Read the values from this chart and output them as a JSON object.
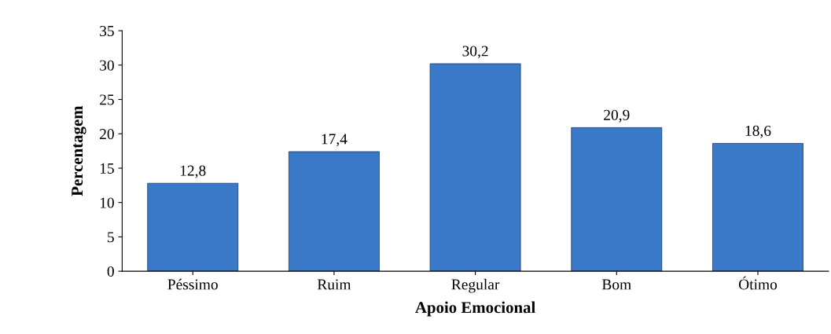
{
  "chart_data": {
    "type": "bar",
    "xlabel": "Apoio Emocional",
    "ylabel": "Percentagem",
    "categories": [
      "Péssimo",
      "Ruim",
      "Regular",
      "Bom",
      "Ótimo"
    ],
    "values": [
      12.8,
      17.4,
      30.2,
      20.9,
      18.6
    ],
    "value_labels": [
      "12,8",
      "17,4",
      "30,2",
      "20,9",
      "18,6"
    ],
    "color": "#3a78c8",
    "ylim": [
      0,
      35
    ],
    "yticks": [
      0,
      5,
      10,
      15,
      20,
      25,
      30,
      35
    ],
    "grid": false
  }
}
